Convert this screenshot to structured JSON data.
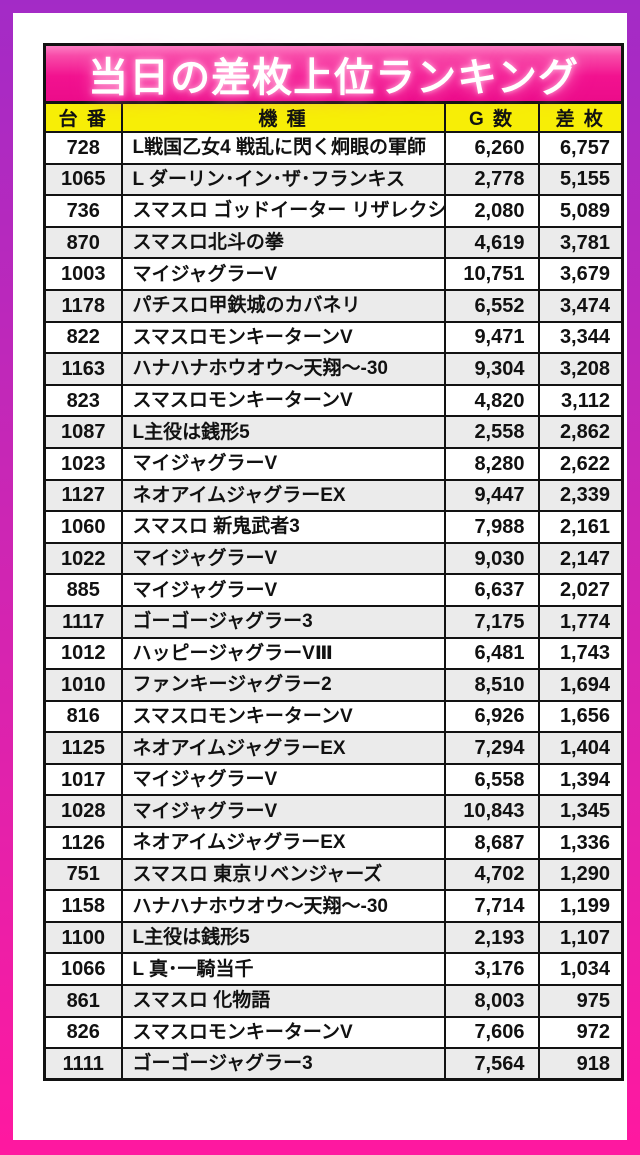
{
  "title": "当日の差枚上位ランキング",
  "table": {
    "columns": [
      "台 番",
      "機 種",
      "G 数",
      "差 枚"
    ],
    "rows": [
      {
        "no": "728",
        "model": "L戦国乙女4 戦乱に閃く炯眼の軍師",
        "games": "6,260",
        "diff": "6,757"
      },
      {
        "no": "1065",
        "model": "L ダーリン･イン･ザ･フランキス",
        "games": "2,778",
        "diff": "5,155"
      },
      {
        "no": "736",
        "model": "スマスロ ゴッドイーター リザレクション",
        "games": "2,080",
        "diff": "5,089"
      },
      {
        "no": "870",
        "model": "スマスロ北斗の拳",
        "games": "4,619",
        "diff": "3,781"
      },
      {
        "no": "1003",
        "model": "マイジャグラーV",
        "games": "10,751",
        "diff": "3,679"
      },
      {
        "no": "1178",
        "model": "パチスロ甲鉄城のカバネリ",
        "games": "6,552",
        "diff": "3,474"
      },
      {
        "no": "822",
        "model": "スマスロモンキーターンV",
        "games": "9,471",
        "diff": "3,344"
      },
      {
        "no": "1163",
        "model": "ハナハナホウオウ～天翔～-30",
        "games": "9,304",
        "diff": "3,208"
      },
      {
        "no": "823",
        "model": "スマスロモンキーターンV",
        "games": "4,820",
        "diff": "3,112"
      },
      {
        "no": "1087",
        "model": "L主役は銭形5",
        "games": "2,558",
        "diff": "2,862"
      },
      {
        "no": "1023",
        "model": "マイジャグラーV",
        "games": "8,280",
        "diff": "2,622"
      },
      {
        "no": "1127",
        "model": "ネオアイムジャグラーEX",
        "games": "9,447",
        "diff": "2,339"
      },
      {
        "no": "1060",
        "model": "スマスロ 新鬼武者3",
        "games": "7,988",
        "diff": "2,161"
      },
      {
        "no": "1022",
        "model": "マイジャグラーV",
        "games": "9,030",
        "diff": "2,147"
      },
      {
        "no": "885",
        "model": "マイジャグラーV",
        "games": "6,637",
        "diff": "2,027"
      },
      {
        "no": "1117",
        "model": "ゴーゴージャグラー3",
        "games": "7,175",
        "diff": "1,774"
      },
      {
        "no": "1012",
        "model": "ハッピージャグラーVⅢ",
        "games": "6,481",
        "diff": "1,743"
      },
      {
        "no": "1010",
        "model": "ファンキージャグラー2",
        "games": "8,510",
        "diff": "1,694"
      },
      {
        "no": "816",
        "model": "スマスロモンキーターンV",
        "games": "6,926",
        "diff": "1,656"
      },
      {
        "no": "1125",
        "model": "ネオアイムジャグラーEX",
        "games": "7,294",
        "diff": "1,404"
      },
      {
        "no": "1017",
        "model": "マイジャグラーV",
        "games": "6,558",
        "diff": "1,394"
      },
      {
        "no": "1028",
        "model": "マイジャグラーV",
        "games": "10,843",
        "diff": "1,345"
      },
      {
        "no": "1126",
        "model": "ネオアイムジャグラーEX",
        "games": "8,687",
        "diff": "1,336"
      },
      {
        "no": "751",
        "model": "スマスロ 東京リベンジャーズ",
        "games": "4,702",
        "diff": "1,290"
      },
      {
        "no": "1158",
        "model": "ハナハナホウオウ～天翔～-30",
        "games": "7,714",
        "diff": "1,199"
      },
      {
        "no": "1100",
        "model": "L主役は銭形5",
        "games": "2,193",
        "diff": "1,107"
      },
      {
        "no": "1066",
        "model": "L 真･一騎当千",
        "games": "3,176",
        "diff": "1,034"
      },
      {
        "no": "861",
        "model": "スマスロ 化物語",
        "games": "8,003",
        "diff": "975"
      },
      {
        "no": "826",
        "model": "スマスロモンキーターンV",
        "games": "7,606",
        "diff": "972"
      },
      {
        "no": "1111",
        "model": "ゴーゴージャグラー3",
        "games": "7,564",
        "diff": "918"
      }
    ]
  },
  "colors": {
    "frame_top": "#a32bc6",
    "frame_bottom": "#ff18a0",
    "banner_pink": "#f2128f",
    "banner_pink_light": "#fd7ec3",
    "header_yellow": "#f7ee06",
    "row_alt_gray": "#ebebeb",
    "border_black": "#121212",
    "title_text": "#ffffff"
  },
  "chart_data": {
    "type": "table",
    "title": "当日の差枚上位ランキング",
    "columns": [
      "台番",
      "機種",
      "G数",
      "差枚"
    ],
    "rows": [
      [
        "728",
        "L戦国乙女4 戦乱に閃く炯眼の軍師",
        6260,
        6757
      ],
      [
        "1065",
        "L ダーリン･イン･ザ･フランキス",
        2778,
        5155
      ],
      [
        "736",
        "スマスロ ゴッドイーター リザレクション",
        2080,
        5089
      ],
      [
        "870",
        "スマスロ北斗の拳",
        4619,
        3781
      ],
      [
        "1003",
        "マイジャグラーV",
        10751,
        3679
      ],
      [
        "1178",
        "パチスロ甲鉄城のカバネリ",
        6552,
        3474
      ],
      [
        "822",
        "スマスロモンキーターンV",
        9471,
        3344
      ],
      [
        "1163",
        "ハナハナホウオウ～天翔～-30",
        9304,
        3208
      ],
      [
        "823",
        "スマスロモンキーターンV",
        4820,
        3112
      ],
      [
        "1087",
        "L主役は銭形5",
        2558,
        2862
      ],
      [
        "1023",
        "マイジャグラーV",
        8280,
        2622
      ],
      [
        "1127",
        "ネオアイムジャグラーEX",
        9447,
        2339
      ],
      [
        "1060",
        "スマスロ 新鬼武者3",
        7988,
        2161
      ],
      [
        "1022",
        "マイジャグラーV",
        9030,
        2147
      ],
      [
        "885",
        "マイジャグラーV",
        6637,
        2027
      ],
      [
        "1117",
        "ゴーゴージャグラー3",
        7175,
        1774
      ],
      [
        "1012",
        "ハッピージャグラーVⅢ",
        6481,
        1743
      ],
      [
        "1010",
        "ファンキージャグラー2",
        8510,
        1694
      ],
      [
        "816",
        "スマスロモンキーターンV",
        6926,
        1656
      ],
      [
        "1125",
        "ネオアイムジャグラーEX",
        7294,
        1404
      ],
      [
        "1017",
        "マイジャグラーV",
        6558,
        1394
      ],
      [
        "1028",
        "マイジャグラーV",
        10843,
        1345
      ],
      [
        "1126",
        "ネオアイムジャグラーEX",
        8687,
        1336
      ],
      [
        "751",
        "スマスロ 東京リベンジャーズ",
        4702,
        1290
      ],
      [
        "1158",
        "ハナハナホウオウ～天翔～-30",
        7714,
        1199
      ],
      [
        "1100",
        "L主役は銭形5",
        2193,
        1107
      ],
      [
        "1066",
        "L 真･一騎当千",
        3176,
        1034
      ],
      [
        "861",
        "スマスロ 化物語",
        8003,
        975
      ],
      [
        "826",
        "スマスロモンキーターンV",
        7606,
        972
      ],
      [
        "1111",
        "ゴーゴージャグラー3",
        7564,
        918
      ]
    ]
  }
}
